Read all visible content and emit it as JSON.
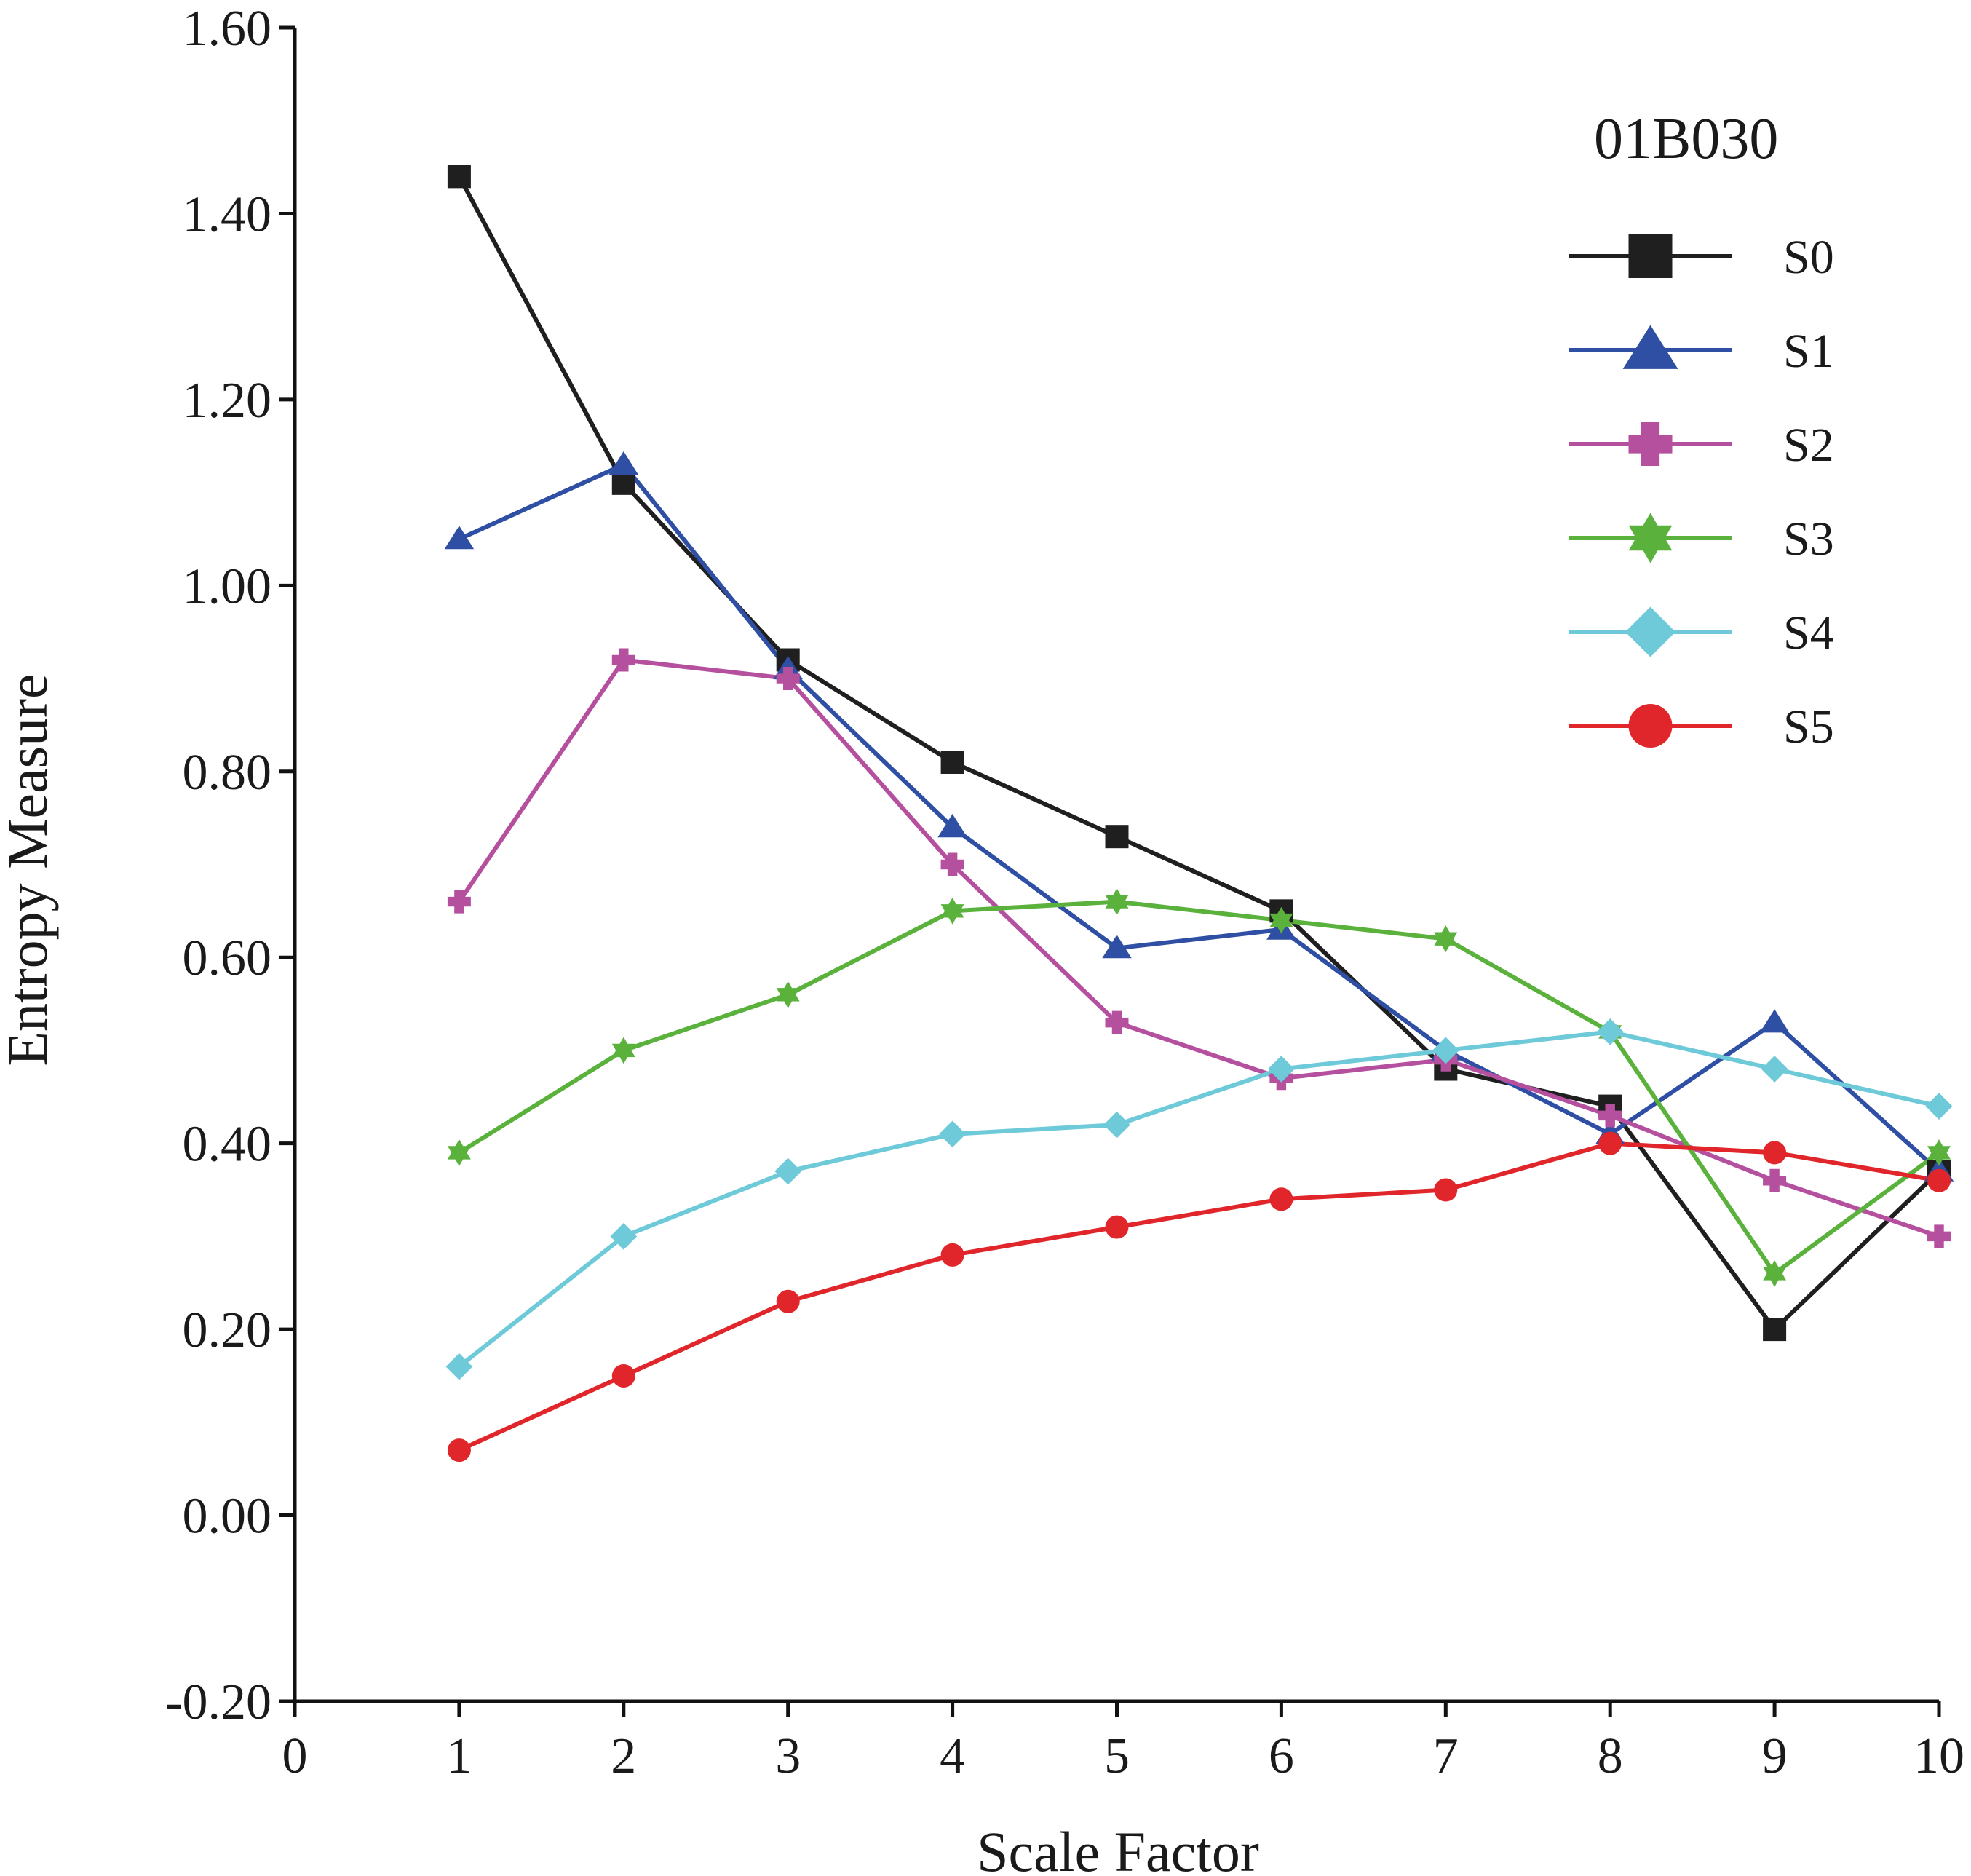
{
  "chart_data": {
    "type": "line",
    "title": "01B030",
    "xlabel": "Scale Factor",
    "ylabel": "Entropy Measure",
    "xlim": [
      0,
      10
    ],
    "ylim": [
      -0.2,
      1.6
    ],
    "xticks": [
      "0",
      "1",
      "2",
      "3",
      "4",
      "5",
      "6",
      "7",
      "8",
      "9",
      "10"
    ],
    "yticks": [
      "-0.20",
      "0.00",
      "0.20",
      "0.40",
      "0.60",
      "0.80",
      "1.00",
      "1.20",
      "1.40",
      "1.60"
    ],
    "grid": false,
    "legend_position": "top-right",
    "x": [
      1,
      2,
      3,
      4,
      5,
      6,
      7,
      8,
      9,
      10
    ],
    "series": [
      {
        "name": "S0",
        "color": "#1f1f1f",
        "marker": "square",
        "values": [
          1.44,
          1.11,
          0.92,
          0.81,
          0.73,
          0.65,
          0.48,
          0.44,
          0.2,
          0.37
        ]
      },
      {
        "name": "S1",
        "color": "#2e4fa3",
        "marker": "triangle",
        "values": [
          1.05,
          1.13,
          0.91,
          0.74,
          0.61,
          0.63,
          0.5,
          0.41,
          0.53,
          0.37
        ]
      },
      {
        "name": "S2",
        "color": "#b5509f",
        "marker": "plus",
        "values": [
          0.66,
          0.92,
          0.9,
          0.7,
          0.53,
          0.47,
          0.49,
          0.43,
          0.36,
          0.3
        ]
      },
      {
        "name": "S3",
        "color": "#5ab23c",
        "marker": "star",
        "values": [
          0.39,
          0.5,
          0.56,
          0.65,
          0.66,
          0.64,
          0.62,
          0.52,
          0.26,
          0.39
        ]
      },
      {
        "name": "S4",
        "color": "#6ecad8",
        "marker": "diamond",
        "values": [
          0.16,
          0.3,
          0.37,
          0.41,
          0.42,
          0.48,
          0.5,
          0.52,
          0.48,
          0.44
        ]
      },
      {
        "name": "S5",
        "color": "#e0262a",
        "marker": "circle",
        "values": [
          0.07,
          0.15,
          0.23,
          0.28,
          0.31,
          0.34,
          0.35,
          0.4,
          0.39,
          0.36
        ]
      }
    ]
  }
}
